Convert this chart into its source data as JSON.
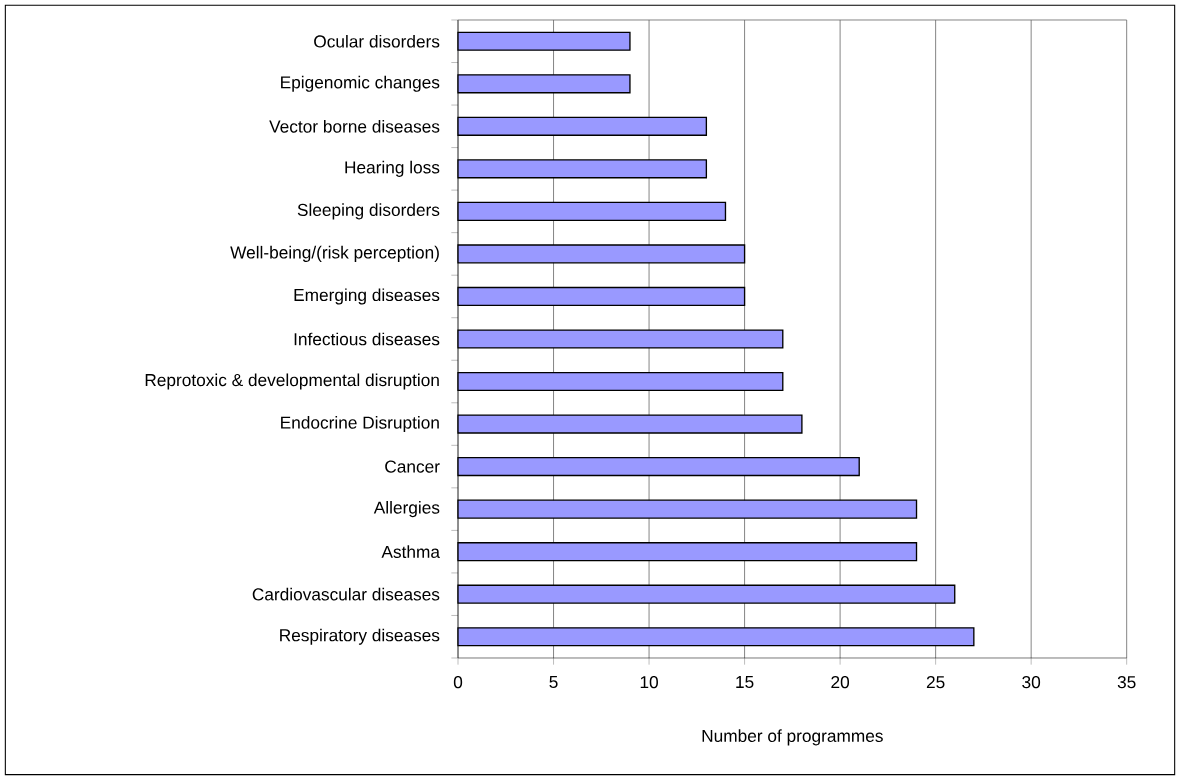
{
  "chart_data": {
    "type": "bar",
    "orientation": "horizontal",
    "xlabel": "Number of programmes",
    "categories": [
      "Ocular disorders",
      "Epigenomic changes",
      "Vector borne diseases",
      "Hearing loss",
      "Sleeping disorders",
      "Well-being/(risk perception)",
      "Emerging diseases",
      "Infectious diseases",
      "Reprotoxic & developmental disruption",
      "Endocrine Disruption",
      "Cancer",
      "Allergies",
      "Asthma",
      "Cardiovascular diseases",
      "Respiratory diseases"
    ],
    "values": [
      9,
      9,
      13,
      13,
      14,
      15,
      15,
      17,
      17,
      18,
      21,
      24,
      24,
      26,
      27
    ],
    "color": "#9999ff",
    "xlim": [
      0,
      35
    ],
    "xticks": [
      0,
      5,
      10,
      15,
      20,
      25,
      30,
      35
    ],
    "grid": "x"
  }
}
